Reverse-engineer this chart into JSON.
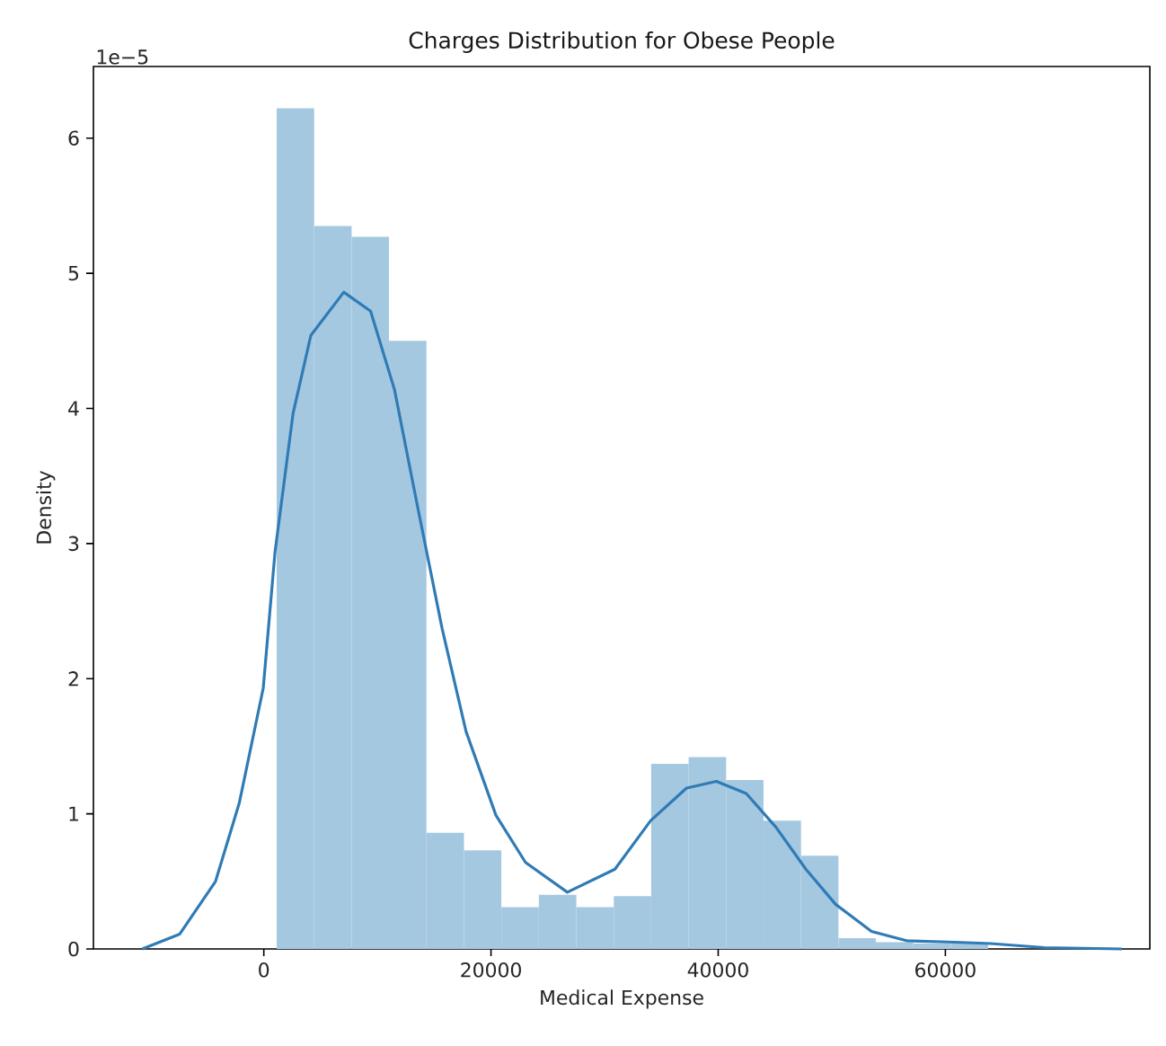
{
  "chart_data": {
    "type": "histogram",
    "title": "Charges Distribution for Obese People",
    "xlabel": "Medical Expense",
    "ylabel": "Density",
    "annotations": [
      "1e−5"
    ],
    "bins": [
      1130,
      4430,
      7730,
      11020,
      14320,
      17620,
      20910,
      24210,
      27510,
      30810,
      34100,
      37400,
      40700,
      43990,
      47290,
      50590,
      53880,
      57180,
      60480,
      63770
    ],
    "values": [
      6.22,
      5.35,
      5.27,
      4.5,
      0.86,
      0.73,
      0.31,
      0.4,
      0.31,
      0.39,
      1.37,
      1.42,
      1.25,
      0.95,
      0.69,
      0.08,
      0.05,
      0.04,
      0.04
    ],
    "color": "#a5c8e1",
    "series": [
      {
        "type": "line",
        "color": "#2f7bb5",
        "x": [
          -10700,
          -7400,
          -4250,
          -2160,
          -50,
          990,
          2570,
          4140,
          7040,
          9400,
          11500,
          13590,
          15700,
          17800,
          20430,
          23040,
          26720,
          30910,
          34060,
          37210,
          39840,
          42470,
          45090,
          47720,
          50340,
          53500,
          56650,
          60840,
          63990,
          68710,
          75540
        ],
        "values": [
          0.0,
          0.11,
          0.5,
          1.08,
          1.93,
          2.94,
          3.96,
          4.54,
          4.86,
          4.72,
          4.14,
          3.25,
          2.37,
          1.61,
          0.99,
          0.64,
          0.42,
          0.59,
          0.95,
          1.19,
          1.24,
          1.15,
          0.9,
          0.59,
          0.33,
          0.13,
          0.06,
          0.05,
          0.04,
          0.01,
          0.0
        ]
      }
    ],
    "xlim": [
      -15000,
      78000
    ],
    "ylim": [
      0,
      6.53
    ],
    "xticks": [
      0,
      20000,
      40000,
      60000
    ],
    "yticks": [
      0,
      1,
      2,
      3,
      4,
      5,
      6
    ],
    "grid": false
  }
}
